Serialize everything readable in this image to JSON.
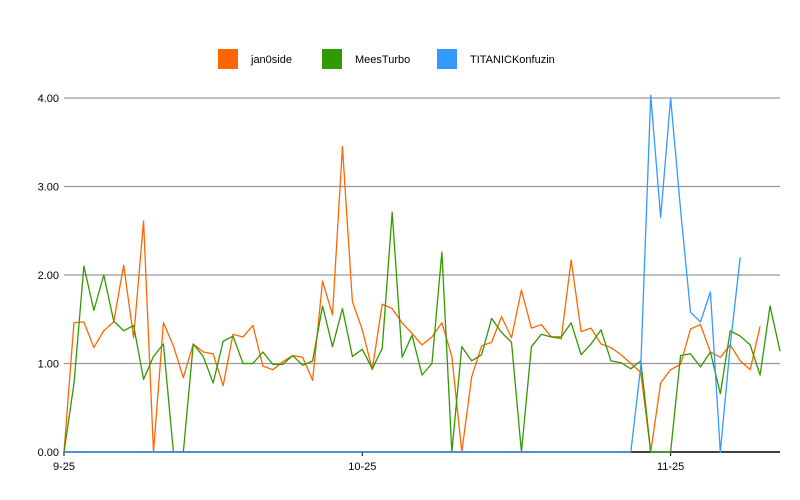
{
  "chart_data": {
    "type": "line",
    "title": "",
    "xlabel": "",
    "ylabel": "",
    "ylim": [
      0,
      4
    ],
    "yticks": [
      "0.00",
      "1.00",
      "2.00",
      "3.00",
      "4.00"
    ],
    "x_tick_labels": [
      "9-25",
      "10-25",
      "11-25"
    ],
    "x_tick_index": [
      0,
      30,
      61
    ],
    "grid": true,
    "legend_position": "top-center",
    "series": [
      {
        "name": "jan0side",
        "color": "#ff6600",
        "values": [
          0,
          1.46,
          1.47,
          1.18,
          1.37,
          1.47,
          2.11,
          1.29,
          2.61,
          0,
          1.46,
          1.2,
          0.84,
          1.22,
          1.13,
          1.11,
          0.75,
          1.33,
          1.3,
          1.43,
          0.97,
          0.93,
          1.02,
          1.09,
          1.07,
          0.81,
          1.93,
          1.55,
          3.45,
          1.7,
          1.38,
          0.93,
          1.67,
          1.62,
          1.46,
          1.34,
          1.21,
          1.3,
          1.46,
          1.08,
          0,
          0.85,
          1.2,
          1.24,
          1.53,
          1.29,
          1.83,
          1.4,
          1.44,
          1.3,
          1.28,
          2.17,
          1.36,
          1.4,
          1.22,
          1.18,
          1.1,
          1.0,
          0.9,
          0,
          0.78,
          0.93,
          0.99,
          1.39,
          1.44,
          1.13,
          1.07,
          1.21,
          1.03,
          0.93,
          1.42
        ]
      },
      {
        "name": "MeesTurbo",
        "color": "#339900",
        "values": [
          0,
          0.77,
          2.1,
          1.6,
          2.0,
          1.48,
          1.37,
          1.43,
          0.82,
          1.08,
          1.22,
          0,
          0,
          1.22,
          1.08,
          0.78,
          1.25,
          1.31,
          1.0,
          1.0,
          1.13,
          0.99,
          0.99,
          1.09,
          0.98,
          1.03,
          1.65,
          1.19,
          1.62,
          1.08,
          1.16,
          0.94,
          1.17,
          2.71,
          1.07,
          1.32,
          0.87,
          1.0,
          2.26,
          0,
          1.19,
          1.03,
          1.1,
          1.51,
          1.35,
          1.24,
          0,
          1.19,
          1.33,
          1.3,
          1.3,
          1.46,
          1.1,
          1.22,
          1.38,
          1.03,
          1.01,
          0.94,
          1.03,
          0,
          0,
          0,
          1.09,
          1.11,
          0.96,
          1.13,
          0.66,
          1.37,
          1.31,
          1.21,
          0.87,
          1.65,
          1.14
        ]
      },
      {
        "name": "TITANICKonfuzin",
        "color": "#3399ff",
        "x_start": 57,
        "values": [
          0,
          0.97,
          4.03,
          2.65,
          4.0,
          2.74,
          1.58,
          1.47,
          1.81,
          0,
          1.21,
          2.2
        ]
      }
    ]
  }
}
